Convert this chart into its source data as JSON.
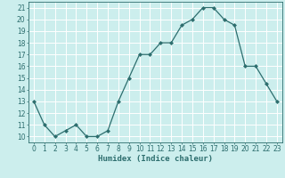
{
  "x": [
    0,
    1,
    2,
    3,
    4,
    5,
    6,
    7,
    8,
    9,
    10,
    11,
    12,
    13,
    14,
    15,
    16,
    17,
    18,
    19,
    20,
    21,
    22,
    23
  ],
  "y": [
    13,
    11,
    10,
    10.5,
    11,
    10,
    10,
    10.5,
    13,
    15,
    17,
    17,
    18,
    18,
    19.5,
    20,
    21,
    21,
    20,
    19.5,
    16,
    16,
    14.5,
    13
  ],
  "line_color": "#2d6e6e",
  "marker": "D",
  "marker_size": 2.0,
  "bg_color": "#cceeed",
  "grid_color": "#ffffff",
  "xlabel": "Humidex (Indice chaleur)",
  "xlim": [
    -0.5,
    23.5
  ],
  "ylim": [
    9.5,
    21.5
  ],
  "yticks": [
    10,
    11,
    12,
    13,
    14,
    15,
    16,
    17,
    18,
    19,
    20,
    21
  ],
  "xticks": [
    0,
    1,
    2,
    3,
    4,
    5,
    6,
    7,
    8,
    9,
    10,
    11,
    12,
    13,
    14,
    15,
    16,
    17,
    18,
    19,
    20,
    21,
    22,
    23
  ],
  "label_fontsize": 6.5,
  "tick_fontsize": 5.5
}
